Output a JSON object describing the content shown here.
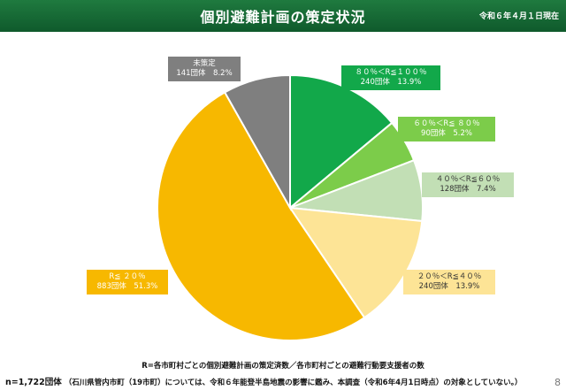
{
  "header": {
    "title": "個別避難計画の策定状況",
    "date": "令和６年４月１日現在"
  },
  "chart_data": {
    "type": "pie",
    "start_angle_deg": 0,
    "direction": "clockwise",
    "slices": [
      {
        "label": "８０％＜R≦１００％",
        "detail": "240団体　13.9%",
        "count": 240,
        "percent": 13.9,
        "color": "#12a84a",
        "label_bg": "#12a84a",
        "label_color": "#ffffff"
      },
      {
        "label": "６０％＜R≦ ８０％",
        "detail": "90団体　5.2%",
        "count": 90,
        "percent": 5.2,
        "color": "#7ccc4a",
        "label_bg": "#7ccc4a",
        "label_color": "#ffffff"
      },
      {
        "label": "４０％＜R≦６０％",
        "detail": "128団体　7.4%",
        "count": 128,
        "percent": 7.4,
        "color": "#c2dfb5",
        "label_bg": "#c2dfb5",
        "label_color": "#333333"
      },
      {
        "label": "２０％＜R≦４０％",
        "detail": "240団体　13.9%",
        "count": 240,
        "percent": 13.9,
        "color": "#fde496",
        "label_bg": "#fde496",
        "label_color": "#333333"
      },
      {
        "label": "R≦ ２０％",
        "detail": "883団体　51.3%",
        "count": 883,
        "percent": 51.3,
        "color": "#f7b800",
        "label_bg": "#f7b800",
        "label_color": "#ffffff"
      },
      {
        "label": "未策定",
        "detail": "141団体　8.2%",
        "count": 141,
        "percent": 8.2,
        "color": "#7f7f7f",
        "label_bg": "#7f7f7f",
        "label_color": "#ffffff"
      }
    ]
  },
  "notes": {
    "definition": "R=各市町村ごとの個別避難計画の策定済数／各市町村ごとの避難行動要支援者の数",
    "total_label": "n=1,722団体",
    "exclusion": "（石川県管内市町（19市町）については、令和６年能登半島地震の影響に鑑み、本調査（令和6年4月1日時点）の対象としていない。）",
    "page": "8"
  }
}
